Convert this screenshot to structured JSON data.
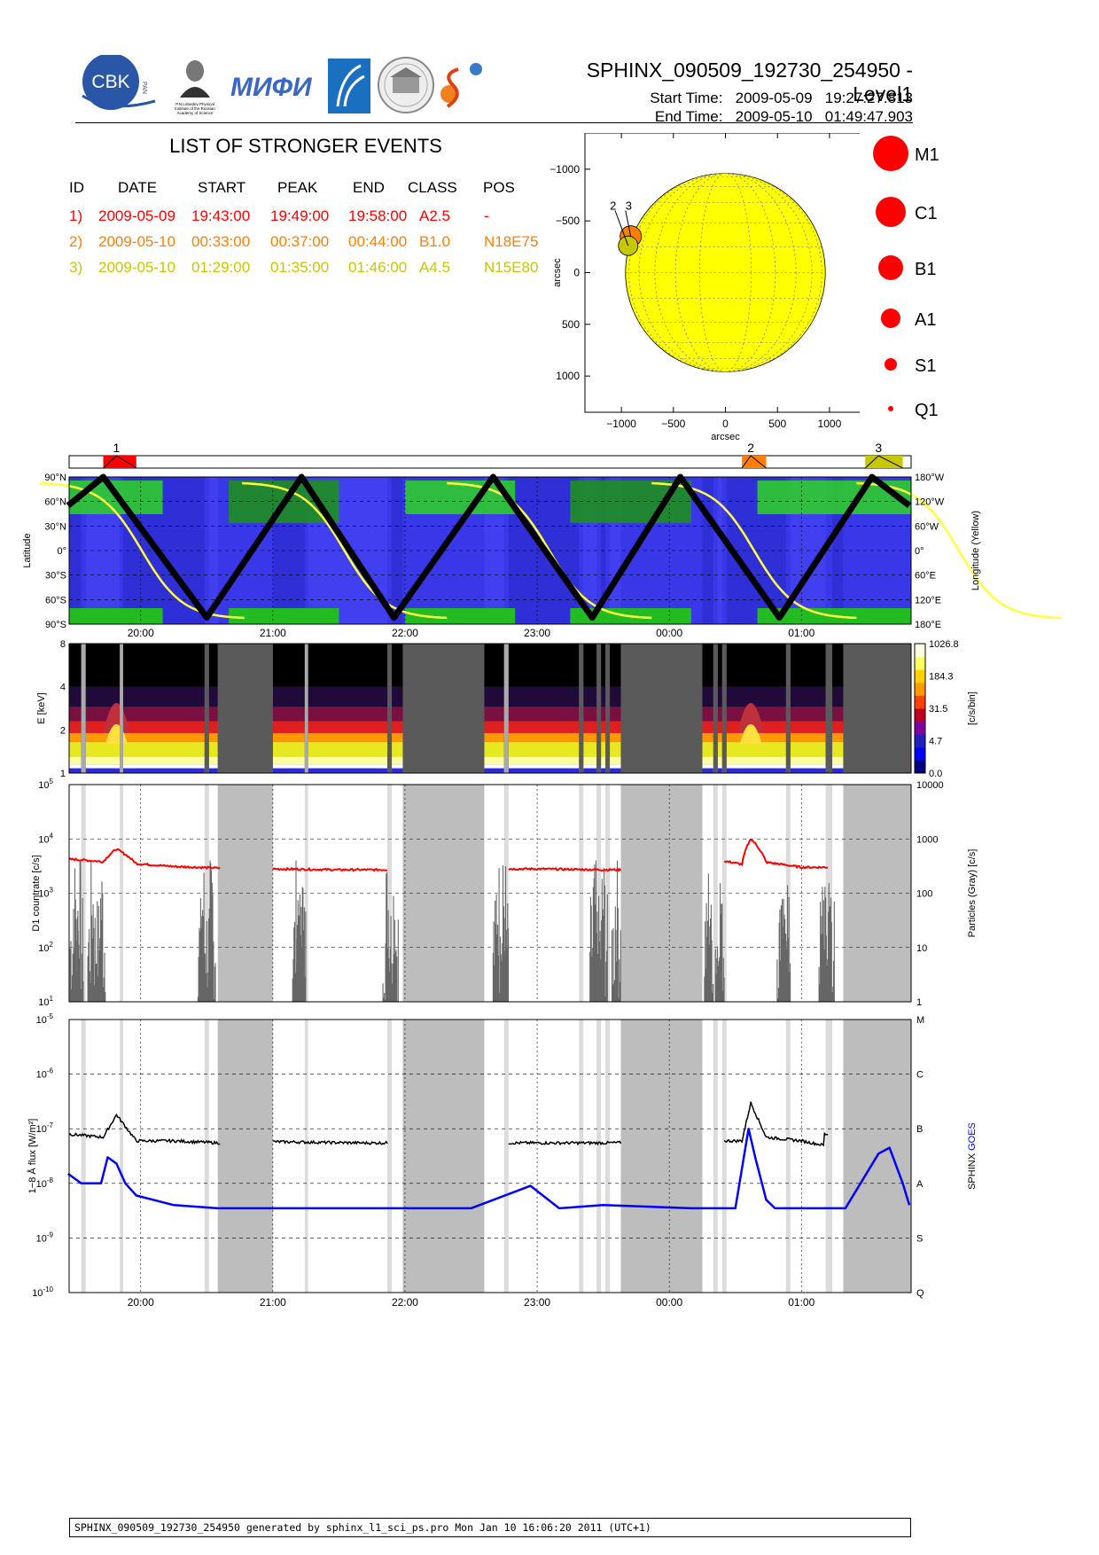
{
  "header": {
    "title": "SPHINX_090509_192730_254950 - Level1",
    "start_label": "Start Time:",
    "start_value": "2009-05-09   19:27:27.813",
    "end_label": "End Time:",
    "end_value": "2009-05-10   01:49:47.903"
  },
  "logos": {
    "cbk": "CBK",
    "cbk_small": "PAN",
    "lebedev_caption": "P.N.Lebedev Physical Institute of the Russian Academy of Science",
    "mifi": "МИФИ"
  },
  "events": {
    "title": "LIST OF STRONGER EVENTS",
    "columns": [
      "ID",
      "DATE",
      "START",
      "PEAK",
      "END",
      "CLASS",
      "POS"
    ],
    "rows": [
      {
        "id": "1)",
        "date": "2009-05-09",
        "start": "19:43:00",
        "peak": "19:49:00",
        "end": "19:58:00",
        "class": "A2.5",
        "pos": "-",
        "color": "#ff0000"
      },
      {
        "id": "2)",
        "date": "2009-05-10",
        "start": "00:33:00",
        "peak": "00:37:00",
        "end": "00:44:00",
        "class": "B1.0",
        "pos": "N18E75",
        "color": "#ff7f00"
      },
      {
        "id": "3)",
        "date": "2009-05-10",
        "start": "01:29:00",
        "peak": "01:35:00",
        "end": "01:46:00",
        "class": "A4.5",
        "pos": "N15E80",
        "color": "#c8c800"
      }
    ]
  },
  "sun_map": {
    "xlabel": "arcsec",
    "ylabel": "arcsec",
    "xticks": [
      "−1000",
      "−500",
      "0",
      "500",
      "1000"
    ],
    "yticks": [
      "1000",
      "500",
      "0",
      "−500",
      "−1000"
    ],
    "event_labels": [
      "2",
      "3"
    ],
    "disk_color": "#ffff00"
  },
  "class_legend": [
    "M1",
    "C1",
    "B1",
    "A1",
    "S1",
    "Q1"
  ],
  "timeline": {
    "time_ticks": [
      "20:00",
      "21:00",
      "22:00",
      "23:00",
      "00:00",
      "01:00"
    ],
    "event_markers": [
      "1",
      "2",
      "3"
    ]
  },
  "chart_data": [
    {
      "type": "area",
      "name": "orbit-latitude-longitude",
      "ylabel": "Latitude",
      "y2label": "Longitude (Yellow)",
      "yticks": [
        "90°N",
        "60°N",
        "30°N",
        "0°",
        "30°S",
        "60°S",
        "90°S"
      ],
      "y2ticks": [
        "180°W",
        "120°W",
        "60°W",
        "0°",
        "60°E",
        "120°E",
        "180°E"
      ],
      "latitude_track": {
        "times": [
          "19:27",
          "19:43",
          "20:30",
          "21:13",
          "21:55",
          "22:40",
          "23:25",
          "00:05",
          "00:50",
          "01:32",
          "01:49"
        ],
        "lat_deg": [
          55,
          90,
          -82,
          90,
          -82,
          90,
          -82,
          90,
          -82,
          90,
          55
        ]
      }
    },
    {
      "type": "heatmap",
      "name": "spectrogram",
      "ylabel": "E [keV]",
      "yticks": [
        "1",
        "2",
        "4",
        "8"
      ],
      "colorbar_label": "[c/s/bin]",
      "colorbar_ticks": [
        "0.0",
        "4.7",
        "31.5",
        "184.3",
        "1026.8"
      ]
    },
    {
      "type": "line",
      "name": "d1-countrate",
      "ylabel": "D1 countrate [c/s]",
      "y2label": "Particles (Gray) [c/s]",
      "yticks": [
        "10^1",
        "10^2",
        "10^3",
        "10^4",
        "10^5"
      ],
      "y2ticks": [
        "1",
        "10",
        "100",
        "1000",
        "10000"
      ],
      "series": [
        {
          "color": "#ff0000",
          "x": [
            "19:30",
            "19:43",
            "19:49",
            "19:58",
            "20:15",
            "20:36",
            "21:00",
            "21:30",
            "22:00",
            "22:30",
            "23:00",
            "23:30",
            "00:25",
            "00:33",
            "00:37",
            "00:44",
            "01:00",
            "01:15"
          ],
          "y": [
            4200,
            3800,
            6500,
            3500,
            3100,
            2900,
            2800,
            2700,
            2800,
            2700,
            2800,
            2700,
            3900,
            3400,
            10000,
            3700,
            3000,
            2800
          ]
        }
      ]
    },
    {
      "type": "line",
      "name": "goes-flux",
      "ylabel": "1−8 Å flux [W/m²]",
      "y2label": "SPHINX GOES",
      "yticks": [
        "10^-10",
        "10^-9",
        "10^-8",
        "10^-7",
        "10^-6",
        "10^-5"
      ],
      "y2ticks": [
        "Q",
        "S",
        "A",
        "B",
        "C",
        "M"
      ],
      "series": [
        {
          "name": "SPHINX",
          "color": "#000000",
          "x": [
            "19:27",
            "19:43",
            "19:49",
            "19:58",
            "20:15",
            "20:36",
            "21:00",
            "21:40",
            "22:30",
            "23:00",
            "23:30",
            "00:25",
            "00:33",
            "00:37",
            "00:44",
            "01:00",
            "01:10"
          ],
          "y": [
            8e-08,
            7e-08,
            1.8e-07,
            6e-08,
            6e-08,
            5.5e-08,
            5.8e-08,
            5.5e-08,
            5.5e-08,
            5.5e-08,
            5.5e-08,
            6e-08,
            6e-08,
            3e-07,
            7e-08,
            6e-08,
            5e-08
          ]
        },
        {
          "name": "GOES",
          "color": "#0000ff",
          "x": [
            "19:27",
            "19:33",
            "19:42",
            "19:45",
            "19:49",
            "19:53",
            "19:58",
            "20:15",
            "20:35",
            "21:30",
            "22:30",
            "22:57",
            "23:10",
            "23:30",
            "00:10",
            "00:30",
            "00:36",
            "00:39",
            "00:44",
            "00:48",
            "01:20",
            "01:35",
            "01:40",
            "01:46",
            "01:49"
          ],
          "y": [
            1.5e-08,
            1e-08,
            1e-08,
            3e-08,
            2.3e-08,
            1e-08,
            6e-09,
            4e-09,
            3.5e-09,
            3.5e-09,
            3.5e-09,
            9e-09,
            3.5e-09,
            4e-09,
            3.5e-09,
            3.5e-09,
            1e-07,
            3e-08,
            5e-09,
            3.5e-09,
            3.5e-09,
            3.5e-08,
            4.5e-08,
            1e-08,
            4e-09
          ]
        }
      ]
    }
  ],
  "footer": "SPHINX_090509_192730_254950 generated by sphinx_l1_sci_ps.pro Mon Jan 10 16:06:20 2011 (UTC+1)"
}
